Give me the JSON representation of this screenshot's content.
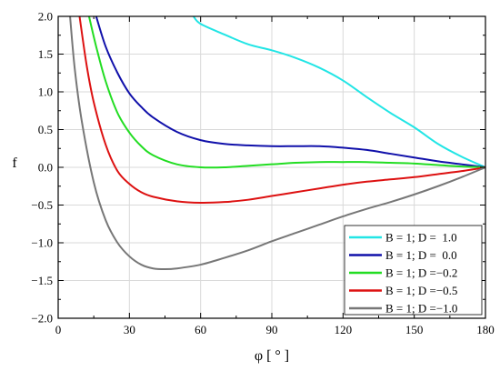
{
  "chart_data": {
    "type": "line",
    "xlabel": "φ [ ° ]",
    "ylabel": "f",
    "xlim": [
      0,
      180
    ],
    "ylim": [
      -2.0,
      2.0
    ],
    "x_ticks": [
      0,
      30,
      60,
      90,
      120,
      150,
      180
    ],
    "x_tick_labels": [
      "0",
      "30",
      "60",
      "90",
      "120",
      "150",
      "180"
    ],
    "y_ticks": [
      -2.0,
      -1.5,
      -1.0,
      -0.5,
      0.0,
      0.5,
      1.0,
      1.5,
      2.0
    ],
    "y_tick_labels": [
      "−2.0",
      "−1.5",
      "−1.0",
      "−0.5",
      "0.0",
      "0.5",
      "1.0",
      "1.5",
      "2.0"
    ],
    "grid": true,
    "legend": "bottom-right",
    "series": [
      {
        "name": "B = 1; D =  1.0",
        "color": "#22e5e5",
        "x": [
          57,
          60,
          70,
          80,
          90,
          100,
          110,
          120,
          130,
          140,
          150,
          160,
          170,
          180
        ],
        "y": [
          2.0,
          1.9,
          1.76,
          1.63,
          1.55,
          1.45,
          1.32,
          1.15,
          0.93,
          0.72,
          0.53,
          0.31,
          0.14,
          0.0
        ]
      },
      {
        "name": "B = 1; D =  0.0",
        "color": "#1010aa",
        "x": [
          16,
          20,
          25,
          30,
          35,
          40,
          50,
          60,
          70,
          80,
          90,
          100,
          110,
          120,
          130,
          140,
          150,
          160,
          170,
          180
        ],
        "y": [
          2.0,
          1.6,
          1.25,
          0.98,
          0.8,
          0.66,
          0.47,
          0.36,
          0.31,
          0.29,
          0.28,
          0.28,
          0.28,
          0.26,
          0.23,
          0.18,
          0.13,
          0.08,
          0.04,
          0.0
        ]
      },
      {
        "name": "B = 1; D =−0.2",
        "color": "#22dd22",
        "x": [
          13,
          16,
          20,
          25,
          30,
          35,
          40,
          50,
          60,
          70,
          80,
          90,
          100,
          110,
          120,
          130,
          140,
          150,
          160,
          170,
          180
        ],
        "y": [
          2.0,
          1.6,
          1.14,
          0.72,
          0.46,
          0.28,
          0.16,
          0.04,
          0.0,
          0.0,
          0.02,
          0.04,
          0.06,
          0.07,
          0.07,
          0.07,
          0.06,
          0.05,
          0.03,
          0.01,
          0.0
        ]
      },
      {
        "name": "B = 1; D =−0.5",
        "color": "#dd1111",
        "x": [
          9,
          12,
          15,
          20,
          25,
          30,
          35,
          40,
          50,
          60,
          70,
          80,
          90,
          100,
          110,
          120,
          130,
          140,
          150,
          160,
          170,
          180
        ],
        "y": [
          2.0,
          1.35,
          0.86,
          0.3,
          -0.05,
          -0.22,
          -0.33,
          -0.39,
          -0.45,
          -0.47,
          -0.46,
          -0.43,
          -0.38,
          -0.33,
          -0.28,
          -0.23,
          -0.19,
          -0.16,
          -0.13,
          -0.09,
          -0.05,
          0.0
        ]
      },
      {
        "name": "B = 1; D =−1.0",
        "color": "#777777",
        "x": [
          5,
          7,
          10,
          15,
          20,
          25,
          30,
          35,
          40,
          45,
          50,
          60,
          70,
          80,
          90,
          100,
          110,
          120,
          130,
          140,
          150,
          160,
          170,
          180
        ],
        "y": [
          2.0,
          1.3,
          0.6,
          -0.2,
          -0.7,
          -1.0,
          -1.18,
          -1.29,
          -1.34,
          -1.35,
          -1.34,
          -1.29,
          -1.2,
          -1.1,
          -0.98,
          -0.87,
          -0.76,
          -0.65,
          -0.55,
          -0.46,
          -0.36,
          -0.25,
          -0.13,
          0.0
        ]
      }
    ]
  }
}
